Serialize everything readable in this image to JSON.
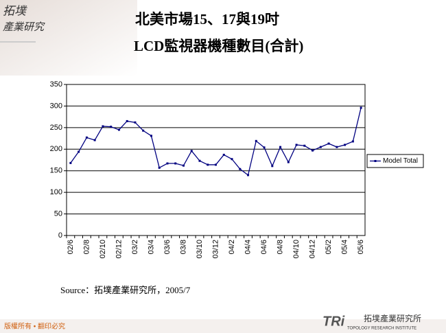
{
  "logo": [
    "拓墣",
    "產業研究"
  ],
  "chart_data": {
    "type": "line",
    "title": [
      "北美市場15、17與19吋",
      "LCD監視器機種數目(合計)"
    ],
    "categories": [
      "02/6",
      null,
      "02/8",
      null,
      "02/10",
      null,
      "02/12",
      null,
      "03/2",
      null,
      "03/4",
      null,
      "03/6",
      null,
      "03/8",
      null,
      "03/10",
      null,
      "03/12",
      null,
      "04/2",
      null,
      "04/4",
      null,
      "04/6",
      null,
      "04/8",
      null,
      "04/10",
      null,
      "04/12",
      null,
      "05/2",
      null,
      "05/4",
      null,
      "05/6"
    ],
    "series": [
      {
        "name": "Model Total",
        "color": "#000080",
        "values": [
          168,
          194,
          227,
          221,
          253,
          252,
          245,
          265,
          262,
          243,
          231,
          157,
          167,
          167,
          162,
          196,
          173,
          164,
          164,
          187,
          177,
          154,
          140,
          219,
          204,
          161,
          205,
          170,
          210,
          208,
          197,
          205,
          213,
          205,
          210,
          218,
          296
        ]
      }
    ],
    "ylim": [
      0,
      350
    ],
    "yticks": [
      0,
      50,
      100,
      150,
      200,
      250,
      300,
      350
    ],
    "grid": true,
    "legend": "right"
  },
  "source": "Source：拓墣產業研究所，2005/7",
  "footer": "版權所有 • 翻印必究",
  "brand": {
    "mark": "TRi",
    "name": "拓墣產業研究所",
    "english": "TOPOLOGY RESEARCH INSTITUTE"
  }
}
